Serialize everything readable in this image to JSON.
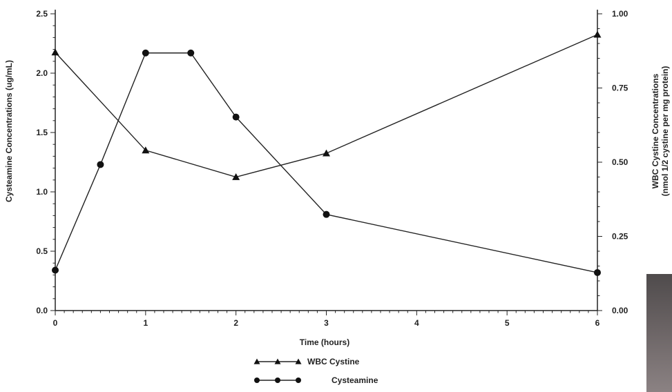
{
  "chart_data": {
    "type": "line",
    "title": "",
    "xlabel": "Time (hours)",
    "ylabel_left": "Cysteamine Concentrations (ug/mL)",
    "ylabel_right_line1": "WBC Cystine Concentrations",
    "ylabel_right_line2": "(nmol 1/2 cystine per mg protein)",
    "x_ticks": [
      0,
      1,
      2,
      3,
      4,
      5,
      6
    ],
    "x_tick_labels": [
      "0",
      "1",
      "2",
      "3",
      "4",
      "5",
      "6"
    ],
    "y_left_ticks": [
      0.0,
      0.5,
      1.0,
      1.5,
      2.0,
      2.5
    ],
    "y_left_tick_labels": [
      "0.0",
      "0.5",
      "1.0",
      "1.5",
      "2.0",
      "2.5"
    ],
    "y_right_ticks": [
      0.0,
      0.25,
      0.5,
      0.75,
      1.0
    ],
    "y_right_tick_labels": [
      "0.00",
      "0.25",
      "0.50",
      "0.75",
      "1.00"
    ],
    "xlim": [
      0,
      6
    ],
    "ylim_left": [
      0,
      2.5
    ],
    "ylim_right": [
      0,
      1.0
    ],
    "grid": false,
    "legend_position": "bottom-center",
    "series": [
      {
        "name": "WBC Cystine",
        "axis": "right",
        "marker": "triangle",
        "x": [
          0,
          1,
          2,
          3,
          6
        ],
        "y": [
          0.87,
          0.54,
          0.45,
          0.53,
          0.93
        ]
      },
      {
        "name": "Cysteamine",
        "axis": "left",
        "marker": "circle",
        "x": [
          0,
          0.5,
          1,
          1.5,
          2,
          3,
          6
        ],
        "y": [
          0.34,
          1.23,
          2.17,
          2.17,
          1.63,
          0.81,
          0.32
        ]
      }
    ]
  }
}
